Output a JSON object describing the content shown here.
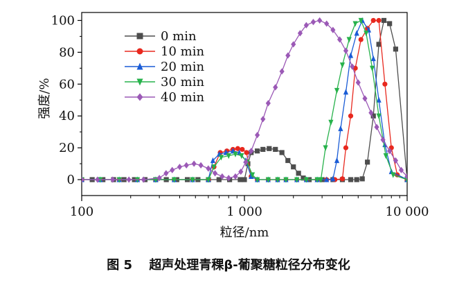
{
  "caption": "图 5　 超声处理青稞β-葡聚糖粒径分布变化",
  "chart_data": {
    "type": "line",
    "xscale": "log",
    "xlim": [
      100,
      10000
    ],
    "ylim": [
      -10,
      105
    ],
    "xlabel": "粒径/nm",
    "ylabel": "强度/%",
    "xticks": [
      100,
      1000,
      10000
    ],
    "xtick_labels": [
      "100",
      "1 000",
      "10 000"
    ],
    "yticks": [
      0,
      20,
      40,
      60,
      80,
      100
    ],
    "ytick_labels": [
      "0",
      "20",
      "40",
      "60",
      "80",
      "100"
    ],
    "legend_position": "top-left",
    "series": [
      {
        "name": "0 min",
        "color": "#4d4d4d",
        "marker": "square",
        "points": [
          [
            100,
            0
          ],
          [
            116,
            0
          ],
          [
            135,
            0
          ],
          [
            157,
            0
          ],
          [
            182,
            0
          ],
          [
            211,
            0
          ],
          [
            245,
            0
          ],
          [
            285,
            0
          ],
          [
            331,
            0
          ],
          [
            384,
            0
          ],
          [
            446,
            0
          ],
          [
            518,
            0
          ],
          [
            601,
            0
          ],
          [
            698,
            0
          ],
          [
            811,
            0
          ],
          [
            942,
            0
          ],
          [
            1000,
            0
          ],
          [
            1050,
            10
          ],
          [
            1100,
            17
          ],
          [
            1200,
            18
          ],
          [
            1300,
            19
          ],
          [
            1420,
            19.5
          ],
          [
            1550,
            19
          ],
          [
            1700,
            17
          ],
          [
            1850,
            12
          ],
          [
            2000,
            8
          ],
          [
            2150,
            4
          ],
          [
            2300,
            1
          ],
          [
            2500,
            0
          ],
          [
            3000,
            0
          ],
          [
            3500,
            0
          ],
          [
            4000,
            0
          ],
          [
            4500,
            0
          ],
          [
            4900,
            0
          ],
          [
            5300,
            0.5
          ],
          [
            5700,
            11
          ],
          [
            6200,
            40
          ],
          [
            6700,
            85
          ],
          [
            7200,
            100
          ],
          [
            7800,
            98
          ],
          [
            8500,
            82
          ],
          [
            10000,
            0
          ]
        ]
      },
      {
        "name": "10 min",
        "color": "#e8281e",
        "marker": "circle",
        "points": [
          [
            100,
            0
          ],
          [
            130,
            0
          ],
          [
            170,
            0
          ],
          [
            220,
            0
          ],
          [
            285,
            0
          ],
          [
            370,
            0
          ],
          [
            480,
            0
          ],
          [
            600,
            0
          ],
          [
            650,
            8
          ],
          [
            710,
            17
          ],
          [
            780,
            18
          ],
          [
            850,
            19
          ],
          [
            910,
            19.5
          ],
          [
            970,
            19
          ],
          [
            1030,
            17
          ],
          [
            1100,
            2
          ],
          [
            1200,
            0
          ],
          [
            1400,
            0
          ],
          [
            1600,
            0
          ],
          [
            1800,
            0
          ],
          [
            2100,
            0
          ],
          [
            2400,
            0
          ],
          [
            2800,
            0
          ],
          [
            3200,
            0
          ],
          [
            3600,
            0
          ],
          [
            4000,
            0.5
          ],
          [
            4200,
            20
          ],
          [
            4500,
            40
          ],
          [
            4800,
            70
          ],
          [
            5200,
            88
          ],
          [
            5700,
            95
          ],
          [
            6200,
            100
          ],
          [
            6700,
            100
          ],
          [
            7300,
            60
          ],
          [
            8000,
            20
          ],
          [
            8700,
            3
          ],
          [
            10000,
            0
          ]
        ]
      },
      {
        "name": "20 min",
        "color": "#1a5cd6",
        "marker": "triangle-up",
        "points": [
          [
            100,
            0
          ],
          [
            130,
            0
          ],
          [
            170,
            0
          ],
          [
            220,
            0
          ],
          [
            285,
            0
          ],
          [
            370,
            0
          ],
          [
            480,
            0
          ],
          [
            600,
            0
          ],
          [
            640,
            12
          ],
          [
            700,
            16
          ],
          [
            770,
            17
          ],
          [
            850,
            18
          ],
          [
            930,
            17
          ],
          [
            1020,
            12
          ],
          [
            1100,
            2
          ],
          [
            1200,
            0
          ],
          [
            1400,
            0
          ],
          [
            1600,
            0
          ],
          [
            1800,
            0
          ],
          [
            2100,
            0
          ],
          [
            2400,
            0
          ],
          [
            2800,
            0
          ],
          [
            3200,
            0
          ],
          [
            3500,
            0.5
          ],
          [
            3700,
            12
          ],
          [
            3900,
            32
          ],
          [
            4200,
            55
          ],
          [
            4500,
            78
          ],
          [
            4900,
            92
          ],
          [
            5300,
            100
          ],
          [
            5800,
            94
          ],
          [
            6200,
            76
          ],
          [
            6700,
            50
          ],
          [
            7300,
            22
          ],
          [
            8000,
            5
          ],
          [
            10000,
            0
          ]
        ]
      },
      {
        "name": "30 min",
        "color": "#27b24b",
        "marker": "triangle-down",
        "points": [
          [
            100,
            0
          ],
          [
            130,
            0
          ],
          [
            170,
            0
          ],
          [
            220,
            0
          ],
          [
            285,
            0
          ],
          [
            370,
            0
          ],
          [
            480,
            0
          ],
          [
            600,
            0
          ],
          [
            650,
            8
          ],
          [
            720,
            14
          ],
          [
            800,
            15
          ],
          [
            880,
            16
          ],
          [
            960,
            15
          ],
          [
            1040,
            11
          ],
          [
            1120,
            3
          ],
          [
            1200,
            0
          ],
          [
            1400,
            0
          ],
          [
            1600,
            0
          ],
          [
            1800,
            0
          ],
          [
            2100,
            0
          ],
          [
            2400,
            0
          ],
          [
            2800,
            0
          ],
          [
            2950,
            0
          ],
          [
            3150,
            20
          ],
          [
            3400,
            36
          ],
          [
            3700,
            56
          ],
          [
            4000,
            72
          ],
          [
            4400,
            88
          ],
          [
            4800,
            98
          ],
          [
            5200,
            100
          ],
          [
            5600,
            92
          ],
          [
            6100,
            70
          ],
          [
            6700,
            40
          ],
          [
            7400,
            15
          ],
          [
            8200,
            3
          ],
          [
            10000,
            0
          ]
        ]
      },
      {
        "name": "40 min",
        "color": "#9b59b6",
        "marker": "diamond",
        "points": [
          [
            100,
            0
          ],
          [
            125,
            0
          ],
          [
            155,
            0
          ],
          [
            195,
            0
          ],
          [
            240,
            0
          ],
          [
            300,
            1
          ],
          [
            330,
            4
          ],
          [
            360,
            6
          ],
          [
            400,
            8
          ],
          [
            440,
            9
          ],
          [
            490,
            10
          ],
          [
            540,
            9
          ],
          [
            600,
            7
          ],
          [
            660,
            4
          ],
          [
            730,
            2
          ],
          [
            800,
            1
          ],
          [
            880,
            2
          ],
          [
            950,
            5
          ],
          [
            1020,
            11
          ],
          [
            1100,
            18
          ],
          [
            1200,
            28
          ],
          [
            1300,
            38
          ],
          [
            1400,
            48
          ],
          [
            1550,
            58
          ],
          [
            1700,
            68
          ],
          [
            1850,
            78
          ],
          [
            2000,
            85
          ],
          [
            2200,
            92
          ],
          [
            2400,
            97
          ],
          [
            2650,
            99
          ],
          [
            2900,
            100
          ],
          [
            3200,
            98
          ],
          [
            3500,
            94
          ],
          [
            3850,
            88
          ],
          [
            4200,
            81
          ],
          [
            4600,
            71
          ],
          [
            5000,
            61
          ],
          [
            5500,
            51
          ],
          [
            6000,
            42
          ],
          [
            6500,
            33
          ],
          [
            7100,
            25
          ],
          [
            7800,
            18
          ],
          [
            8500,
            12
          ],
          [
            9200,
            6
          ],
          [
            10000,
            2
          ]
        ]
      }
    ]
  }
}
